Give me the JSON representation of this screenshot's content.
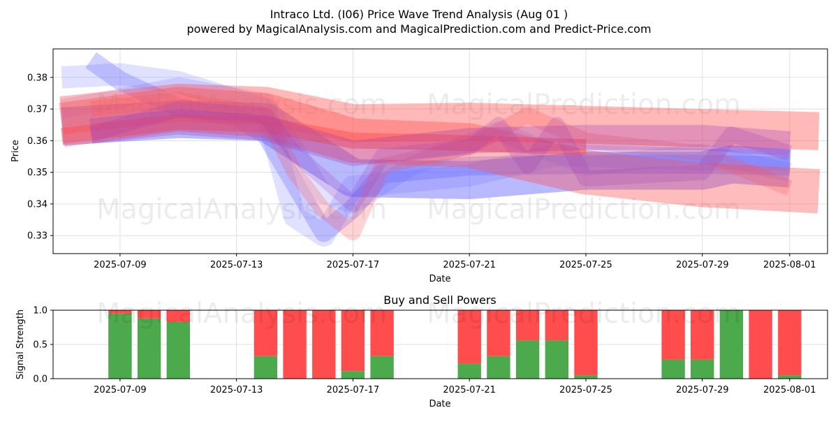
{
  "header": {
    "title": "Intraco Ltd. (I06) Price Wave Trend Analysis (Aug 01 )",
    "subtitle": "powered by MagicalAnalysis.com and MagicalPrediction.com and Predict-Price.com"
  },
  "watermarks": {
    "left": "MagicalAnalysis.com",
    "right": "MagicalPrediction.com"
  },
  "colors": {
    "blue_band": "#6464ff",
    "red_band": "#ff5050",
    "buy": "#4caa4c",
    "sell": "#ff4c4c"
  },
  "chart_data": [
    {
      "type": "area",
      "title": "",
      "xlabel": "Date",
      "ylabel": "Price",
      "x_tick_labels": [
        "2025-07-09",
        "2025-07-13",
        "2025-07-17",
        "2025-07-21",
        "2025-07-25",
        "2025-07-29",
        "2025-08-01"
      ],
      "x_ticks": [
        "2025-07-09",
        "2025-07-13",
        "2025-07-17",
        "2025-07-21",
        "2025-07-25",
        "2025-07-29",
        "2025-08-01"
      ],
      "y_tick_labels": [
        "0.33",
        "0.34",
        "0.35",
        "0.36",
        "0.37",
        "0.38"
      ],
      "y_ticks": [
        0.33,
        0.34,
        0.35,
        0.36,
        0.37,
        0.38
      ],
      "xlim": [
        "2025-07-06.7",
        "2025-08-02.3"
      ],
      "ylim": [
        0.3243,
        0.389
      ],
      "grid": true,
      "series": [
        {
          "color": "blue",
          "points": [
            [
              "2025-07-07",
              0.3645
            ],
            [
              "2025-07-11",
              0.3668
            ],
            [
              "2025-07-14",
              0.3659
            ],
            [
              "2025-07-17",
              0.3482
            ],
            [
              "2025-07-21",
              0.3475
            ],
            [
              "2025-07-25",
              0.3505
            ],
            [
              "2025-07-29",
              0.3505
            ],
            [
              "2025-07-30",
              0.3525
            ],
            [
              "2025-08-01",
              0.3512
            ]
          ],
          "width": 0.012,
          "opacity": 0.45
        },
        {
          "color": "blue",
          "points": [
            [
              "2025-07-08",
              0.3855
            ],
            [
              "2025-07-09",
              0.379
            ],
            [
              "2025-07-11",
              0.3705
            ],
            [
              "2025-07-13",
              0.3675
            ],
            [
              "2025-07-14",
              0.362
            ],
            [
              "2025-07-16",
              0.331
            ],
            [
              "2025-07-17",
              0.3385
            ],
            [
              "2025-07-18",
              0.3495
            ],
            [
              "2025-07-21",
              0.352
            ],
            [
              "2025-07-25",
              0.3525
            ],
            [
              "2025-07-29",
              0.3525
            ],
            [
              "2025-08-01",
              0.352
            ]
          ],
          "width": 0.006,
          "opacity": 0.3
        },
        {
          "color": "blue",
          "points": [
            [
              "2025-07-07",
              0.38
            ],
            [
              "2025-07-09",
              0.381
            ],
            [
              "2025-07-11",
              0.3785
            ],
            [
              "2025-07-14",
              0.37
            ],
            [
              "2025-07-15",
              0.336
            ],
            [
              "2025-07-16",
              0.33
            ],
            [
              "2025-07-17",
              0.3455
            ],
            [
              "2025-07-21",
              0.349
            ],
            [
              "2025-07-24",
              0.3555
            ],
            [
              "2025-07-29",
              0.354
            ],
            [
              "2025-08-01",
              0.354
            ]
          ],
          "width": 0.007,
          "opacity": 0.2
        },
        {
          "color": "blue",
          "points": [
            [
              "2025-07-07",
              0.37
            ],
            [
              "2025-07-11",
              0.377
            ],
            [
              "2025-07-14",
              0.372
            ],
            [
              "2025-07-16",
              0.343
            ],
            [
              "2025-07-17",
              0.34
            ],
            [
              "2025-07-19",
              0.352
            ],
            [
              "2025-07-22",
              0.363
            ],
            [
              "2025-07-25",
              0.352
            ],
            [
              "2025-07-29",
              0.356
            ],
            [
              "2025-08-01",
              0.35
            ]
          ],
          "width": 0.006,
          "opacity": 0.18
        },
        {
          "color": "red",
          "points": [
            [
              "2025-07-07",
              0.368
            ],
            [
              "2025-07-11",
              0.372
            ],
            [
              "2025-07-14",
              0.371
            ],
            [
              "2025-07-17",
              0.3655
            ],
            [
              "2025-07-21",
              0.366
            ],
            [
              "2025-07-25",
              0.365
            ],
            [
              "2025-07-29",
              0.364
            ],
            [
              "2025-08-02",
              0.363
            ]
          ],
          "width": 0.012,
          "opacity": 0.4
        },
        {
          "color": "red",
          "points": [
            [
              "2025-07-07",
              0.365
            ],
            [
              "2025-07-11",
              0.37
            ],
            [
              "2025-07-14",
              0.368
            ],
            [
              "2025-07-17",
              0.36
            ],
            [
              "2025-07-21",
              0.3585
            ],
            [
              "2025-07-25",
              0.35
            ],
            [
              "2025-07-29",
              0.346
            ],
            [
              "2025-08-02",
              0.344
            ]
          ],
          "width": 0.014,
          "opacity": 0.38
        },
        {
          "color": "red",
          "points": [
            [
              "2025-07-07",
              0.3615
            ],
            [
              "2025-07-11",
              0.366
            ],
            [
              "2025-07-14",
              0.365
            ],
            [
              "2025-07-17",
              0.36
            ],
            [
              "2025-07-20",
              0.3595
            ],
            [
              "2025-07-23",
              0.3585
            ],
            [
              "2025-07-25",
              0.358
            ]
          ],
          "width": 0.005,
          "opacity": 0.5
        },
        {
          "color": "red",
          "points": [
            [
              "2025-07-08",
              0.37
            ],
            [
              "2025-07-11",
              0.373
            ],
            [
              "2025-07-14",
              0.368
            ],
            [
              "2025-07-15",
              0.35
            ],
            [
              "2025-07-16",
              0.338
            ],
            [
              "2025-07-17",
              0.331
            ],
            [
              "2025-07-18",
              0.352
            ],
            [
              "2025-07-21",
              0.358
            ],
            [
              "2025-07-23",
              0.368
            ],
            [
              "2025-07-25",
              0.36
            ],
            [
              "2025-07-29",
              0.356
            ],
            [
              "2025-08-01",
              0.345
            ]
          ],
          "width": 0.005,
          "opacity": 0.25
        },
        {
          "color": "purple",
          "points": [
            [
              "2025-07-08",
              0.362
            ],
            [
              "2025-07-11",
              0.37
            ],
            [
              "2025-07-14",
              0.368
            ],
            [
              "2025-07-15",
              0.356
            ],
            [
              "2025-07-17",
              0.34
            ],
            [
              "2025-07-18",
              0.355
            ],
            [
              "2025-07-21",
              0.358
            ],
            [
              "2025-07-22",
              0.365
            ],
            [
              "2025-07-23",
              0.352
            ],
            [
              "2025-07-24",
              0.365
            ],
            [
              "2025-07-25",
              0.348
            ],
            [
              "2025-07-29",
              0.35
            ],
            [
              "2025-07-30",
              0.362
            ],
            [
              "2025-08-01",
              0.356
            ]
          ],
          "width": 0.005,
          "opacity": 0.22
        },
        {
          "color": "purple",
          "points": [
            [
              "2025-07-08",
              0.363
            ],
            [
              "2025-07-11",
              0.366
            ],
            [
              "2025-07-14",
              0.364
            ],
            [
              "2025-07-17",
              0.356
            ],
            [
              "2025-07-21",
              0.36
            ],
            [
              "2025-07-25",
              0.361
            ],
            [
              "2025-07-29",
              0.361
            ],
            [
              "2025-08-01",
              0.359
            ]
          ],
          "width": 0.008,
          "opacity": 0.3
        }
      ]
    },
    {
      "type": "bar",
      "title": "Buy and Sell Powers",
      "xlabel": "Date",
      "ylabel": "Signal Strength",
      "x_tick_labels": [
        "2025-07-09",
        "2025-07-13",
        "2025-07-17",
        "2025-07-21",
        "2025-07-25",
        "2025-07-29",
        "2025-08-01"
      ],
      "x_ticks": [
        "2025-07-09",
        "2025-07-13",
        "2025-07-17",
        "2025-07-21",
        "2025-07-25",
        "2025-07-29",
        "2025-08-01"
      ],
      "y_tick_labels": [
        "0.0",
        "0.5",
        "1.0"
      ],
      "y_ticks": [
        0,
        0.5,
        1
      ],
      "ylim": [
        0,
        1
      ],
      "grid": true,
      "categories": [
        "2025-07-09",
        "2025-07-10",
        "2025-07-11",
        "2025-07-14",
        "2025-07-15",
        "2025-07-16",
        "2025-07-17",
        "2025-07-18",
        "2025-07-21",
        "2025-07-22",
        "2025-07-23",
        "2025-07-24",
        "2025-07-25",
        "2025-07-28",
        "2025-07-29",
        "2025-07-30",
        "2025-07-31",
        "2025-08-01"
      ],
      "series": [
        {
          "name": "",
          "color": "buy",
          "values": [
            0.95,
            0.88,
            0.83,
            0.33,
            0.0,
            0.0,
            0.11,
            0.33,
            0.22,
            0.33,
            0.56,
            0.56,
            0.05,
            0.28,
            0.28,
            1.0,
            0.0,
            0.05
          ]
        },
        {
          "name": "",
          "color": "sell",
          "values": [
            0.05,
            0.12,
            0.17,
            0.67,
            1.0,
            1.0,
            0.89,
            0.67,
            0.78,
            0.67,
            0.44,
            0.44,
            0.95,
            0.72,
            0.72,
            0.0,
            1.0,
            0.95
          ]
        }
      ]
    }
  ]
}
